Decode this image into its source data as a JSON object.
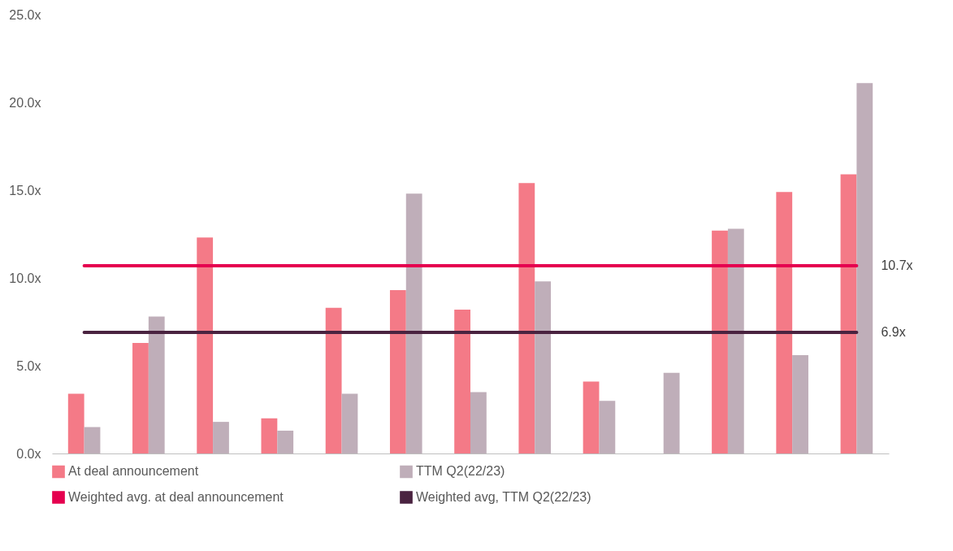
{
  "chart_data": {
    "type": "bar",
    "categories": [
      null,
      null,
      null,
      null,
      null,
      null,
      null,
      null,
      null,
      null,
      null,
      null,
      null
    ],
    "series": [
      {
        "name": "At deal announcement",
        "color": "#f47a87",
        "values": [
          3.4,
          6.3,
          12.3,
          2.0,
          8.3,
          9.3,
          8.2,
          15.4,
          4.1,
          null,
          12.7,
          14.9,
          15.9
        ]
      },
      {
        "name": "TTM Q2(22/23)",
        "color": "#bfaeb9",
        "values": [
          1.5,
          7.8,
          1.8,
          1.3,
          3.4,
          14.8,
          3.5,
          9.8,
          3.0,
          4.6,
          12.8,
          5.6,
          21.1
        ]
      },
      {
        "name": "Weighted avg. at deal announcement",
        "type": "line",
        "color": "#e5004f",
        "values": [
          10.7,
          10.7,
          10.7,
          10.7,
          10.7,
          10.7,
          10.7,
          10.7,
          10.7,
          10.7,
          10.7,
          10.7,
          10.7
        ],
        "value_labels": [
          null,
          null,
          null,
          null,
          null,
          null,
          null,
          null,
          null,
          null,
          null,
          null,
          "10.7x"
        ]
      },
      {
        "name": "Weighted avg, TTM Q2(22/23)",
        "type": "line",
        "color": "#4a2340",
        "values": [
          6.9,
          6.9,
          6.9,
          6.9,
          6.9,
          6.9,
          6.9,
          6.9,
          6.9,
          6.9,
          6.9,
          6.9,
          6.9
        ],
        "value_labels": [
          null,
          null,
          null,
          null,
          null,
          null,
          null,
          null,
          null,
          null,
          null,
          null,
          "6.9x"
        ]
      }
    ],
    "ylim": [
      0,
      25
    ],
    "yticks": [
      {
        "value": 0,
        "label": "0.0x"
      },
      {
        "value": 5,
        "label": "5.0x"
      },
      {
        "value": 10,
        "label": "10.0x"
      },
      {
        "value": 15,
        "label": "15.0x"
      },
      {
        "value": 20,
        "label": "20.0x"
      },
      {
        "value": 25,
        "label": "25.0x"
      }
    ],
    "tick_labels": "y",
    "grid": false,
    "legend": "bottom",
    "marker": "none",
    "line_style": "solid"
  }
}
